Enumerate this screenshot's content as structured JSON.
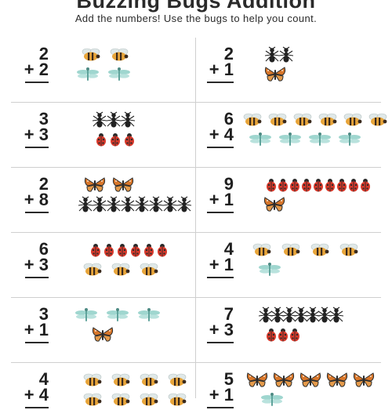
{
  "page": {
    "title": "Buzzing Bugs Addition",
    "subtitle": "Add the numbers! Use the bugs to help you count."
  },
  "problems": [
    {
      "top": "2",
      "bottom": "+ 2",
      "row1": {
        "bug": "bee-icon",
        "count": 2
      },
      "row2": {
        "bug": "dragonfly-icon",
        "count": 2
      }
    },
    {
      "top": "2",
      "bottom": "+ 1",
      "row1": {
        "bug": "ant-icon",
        "count": 2
      },
      "row2": {
        "bug": "butterfly-icon",
        "count": 1
      }
    },
    {
      "top": "3",
      "bottom": "+ 3",
      "row1": {
        "bug": "ant-icon",
        "count": 3
      },
      "row2": {
        "bug": "ladybug-icon",
        "count": 3
      }
    },
    {
      "top": "6",
      "bottom": "+ 4",
      "row1": {
        "bug": "bee-icon",
        "count": 6
      },
      "row2": {
        "bug": "dragonfly-icon",
        "count": 4
      }
    },
    {
      "top": "2",
      "bottom": "+ 8",
      "row1": {
        "bug": "butterfly-icon",
        "count": 2
      },
      "row2": {
        "bug": "ant-icon",
        "count": 8
      }
    },
    {
      "top": "9",
      "bottom": "+ 1",
      "row1": {
        "bug": "ladybug-icon",
        "count": 9
      },
      "row2": {
        "bug": "butterfly-icon",
        "count": 1
      }
    },
    {
      "top": "6",
      "bottom": "+ 3",
      "row1": {
        "bug": "ladybug-icon",
        "count": 6
      },
      "row2": {
        "bug": "bee-icon",
        "count": 3
      }
    },
    {
      "top": "4",
      "bottom": "+ 1",
      "row1": {
        "bug": "bee-icon",
        "count": 4
      },
      "row2": {
        "bug": "dragonfly-icon",
        "count": 1
      }
    },
    {
      "top": "3",
      "bottom": "+ 1",
      "row1": {
        "bug": "dragonfly-icon",
        "count": 3
      },
      "row2": {
        "bug": "butterfly-icon",
        "count": 1
      }
    },
    {
      "top": "7",
      "bottom": "+ 3",
      "row1": {
        "bug": "ant-icon",
        "count": 7
      },
      "row2": {
        "bug": "ladybug-icon",
        "count": 3
      }
    },
    {
      "top": "4",
      "bottom": "+ 4",
      "row1": {
        "bug": "bee-icon",
        "count": 4
      },
      "row2": {
        "bug": "bee-icon",
        "count": 4
      }
    },
    {
      "top": "5",
      "bottom": "+ 1",
      "row1": {
        "bug": "butterfly-icon",
        "count": 5
      },
      "row2": {
        "bug": "dragonfly-icon",
        "count": 1
      }
    }
  ],
  "colors": {
    "ink": "#2a2a2a",
    "divider": "#cfcfcf",
    "bee_body": "#e8a53a",
    "ladybug": "#d8392b",
    "butterfly": "#d9772a",
    "dragonfly": "#8fcfc8",
    "ant": "#222222"
  }
}
